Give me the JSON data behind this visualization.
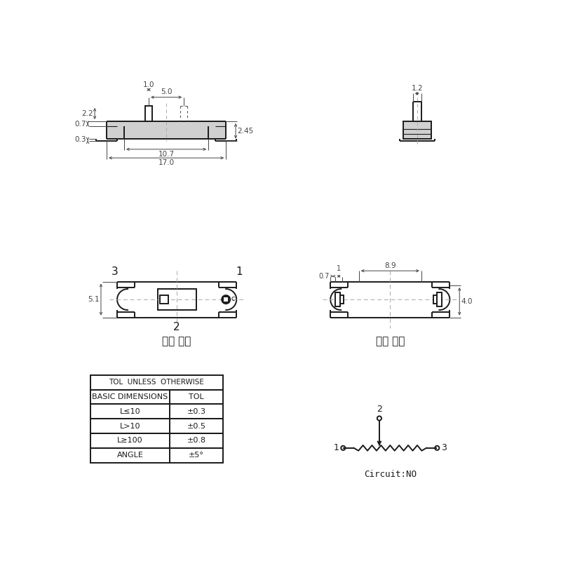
{
  "bg_color": "#ffffff",
  "line_color": "#1a1a1a",
  "dim_color": "#444444",
  "dash_color": "#aaaaaa",
  "title_front": "（正 面）",
  "title_back": "（反 面）",
  "circuit_label": "Circuit:NO",
  "table_header": "TOL  UNLESS  OTHERWISE",
  "table_col1": [
    "BASIC DIMENSIONS",
    "L≤10",
    "L>10",
    "L≥100",
    "ANGLE"
  ],
  "table_col2": [
    "TOL",
    "±0.3",
    "±0.5",
    "±0.8",
    "±5°"
  ]
}
